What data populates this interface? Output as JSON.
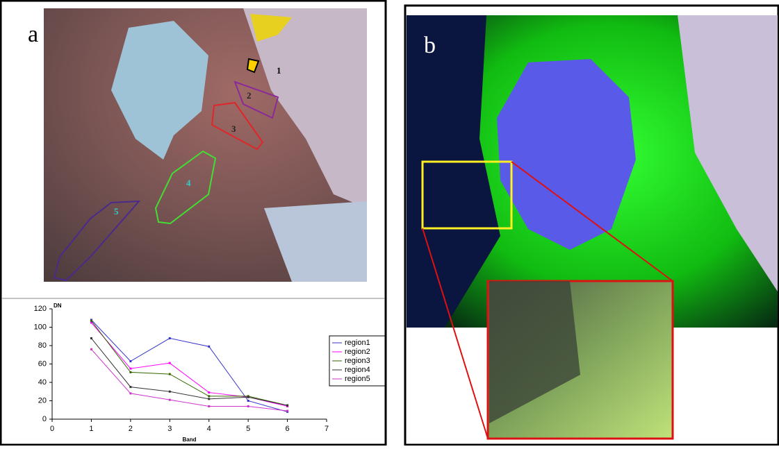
{
  "panels": {
    "a": "a",
    "b": "b"
  },
  "regions": [
    "1",
    "2",
    "3",
    "4",
    "5"
  ],
  "chart_data": {
    "type": "line",
    "ylabel": "DN",
    "xlabel": "Band",
    "x": [
      1,
      2,
      3,
      4,
      5,
      6
    ],
    "series": [
      {
        "name": "region1",
        "color": "#3333cc",
        "values": [
          108,
          63,
          88,
          79,
          20,
          8
        ]
      },
      {
        "name": "region2",
        "color": "#ff00ff",
        "values": [
          105,
          55,
          61,
          29,
          24,
          14
        ]
      },
      {
        "name": "region3",
        "color": "#336600",
        "values": [
          107,
          51,
          49,
          25,
          25,
          15
        ]
      },
      {
        "name": "region4",
        "color": "#333333",
        "values": [
          88,
          35,
          30,
          22,
          24,
          15
        ]
      },
      {
        "name": "region5",
        "color": "#cc33cc",
        "values": [
          76,
          28,
          21,
          14,
          14,
          9
        ]
      }
    ],
    "xlim": [
      0,
      7
    ],
    "xticks": [
      0,
      1,
      2,
      3,
      4,
      5,
      6,
      7
    ],
    "ylim": [
      0,
      120
    ],
    "yticks": [
      0,
      20,
      40,
      60,
      80,
      100,
      120
    ],
    "legend": "right"
  }
}
